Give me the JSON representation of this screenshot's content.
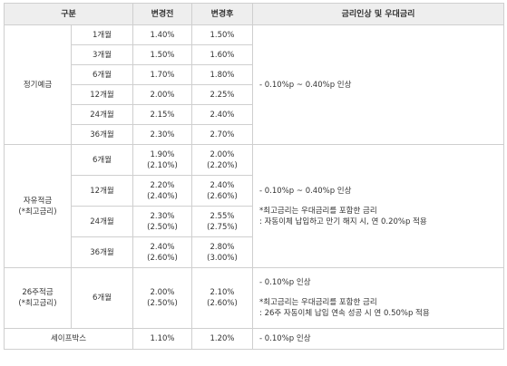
{
  "header": {
    "category": "구분",
    "before": "변경전",
    "after": "변경후",
    "note": "금리인상 및 우대금리"
  },
  "groups": {
    "term_deposit": {
      "name": "정기예금",
      "note": "- 0.10%p ~ 0.40%p 인상",
      "rows": [
        {
          "period": "1개월",
          "before": "1.40%",
          "after": "1.50%"
        },
        {
          "period": "3개월",
          "before": "1.50%",
          "after": "1.60%"
        },
        {
          "period": "6개월",
          "before": "1.70%",
          "after": "1.80%"
        },
        {
          "period": "12개월",
          "before": "2.00%",
          "after": "2.25%"
        },
        {
          "period": "24개월",
          "before": "2.15%",
          "after": "2.40%"
        },
        {
          "period": "36개월",
          "before": "2.30%",
          "after": "2.70%"
        }
      ]
    },
    "free_savings": {
      "name_line1": "자유적금",
      "name_line2": "(*최고금리)",
      "note_line1": "- 0.10%p ~ 0.40%p 인상",
      "note_line2": "*최고금리는 우대금리를 포함한 금리",
      "note_line3": ": 자동이체 납입하고 만기 해지 시, 연 0.20%p 적용",
      "rows": [
        {
          "period": "6개월",
          "before": "1.90%",
          "before_max": "(2.10%)",
          "after": "2.00%",
          "after_max": "(2.20%)"
        },
        {
          "period": "12개월",
          "before": "2.20%",
          "before_max": "(2.40%)",
          "after": "2.40%",
          "after_max": "(2.60%)"
        },
        {
          "period": "24개월",
          "before": "2.30%",
          "before_max": "(2.50%)",
          "after": "2.55%",
          "after_max": "(2.75%)"
        },
        {
          "period": "36개월",
          "before": "2.40%",
          "before_max": "(2.60%)",
          "after": "2.80%",
          "after_max": "(3.00%)"
        }
      ]
    },
    "week26": {
      "name_line1": "26주적금",
      "name_line2": "(*최고금리)",
      "period": "6개월",
      "before": "2.00%",
      "before_max": "(2.50%)",
      "after": "2.10%",
      "after_max": "(2.60%)",
      "note_line1": "- 0.10%p 인상",
      "note_line2": "*최고금리는 우대금리를 포함한 금리",
      "note_line3": ": 26주 자동이체 납입 연속 성공 시 연 0.50%p 적용"
    },
    "safebox": {
      "name": "세이프박스",
      "before": "1.10%",
      "after": "1.20%",
      "note": "- 0.10%p 인상"
    }
  }
}
